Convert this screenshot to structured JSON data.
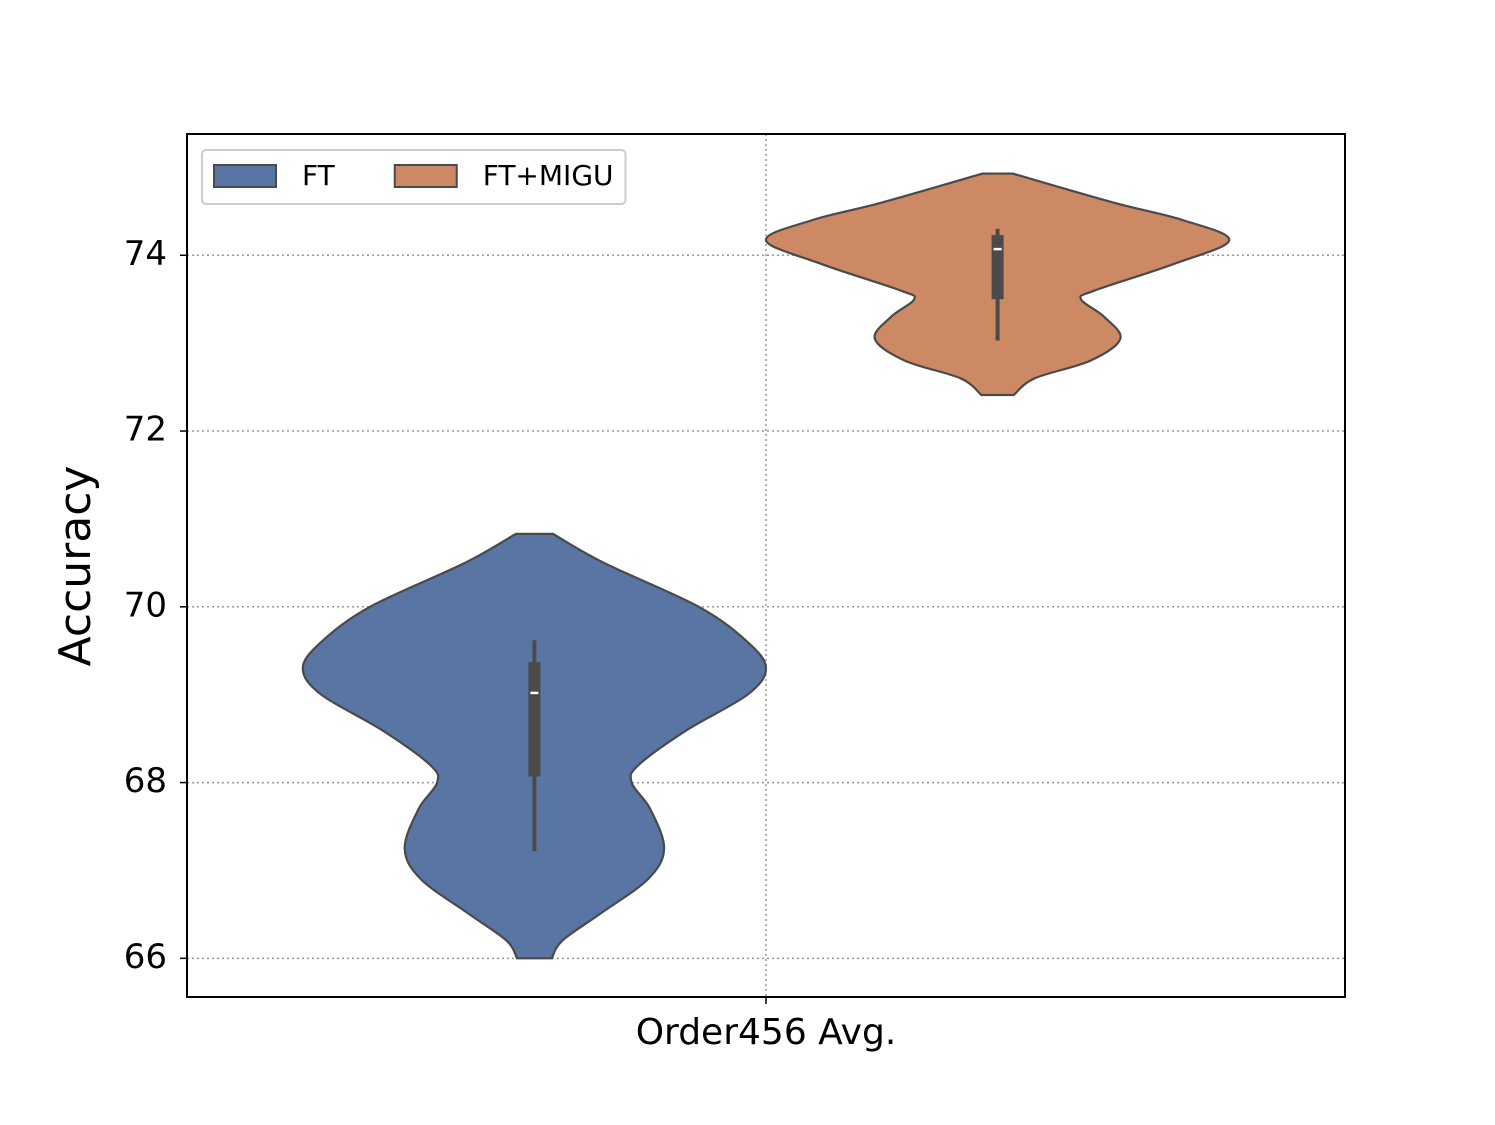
{
  "chart_data": {
    "type": "violin",
    "xlabel": "Order456 Avg.",
    "ylabel": "Accuracy",
    "ylim": [
      65.56,
      75.38
    ],
    "yticks": [
      66,
      68,
      70,
      72,
      74
    ],
    "grid": true,
    "legend": "upper left",
    "series": [
      {
        "name": "FT",
        "color": "#5875a4",
        "min": 66.0,
        "max": 70.83,
        "q1": 68.07,
        "median": 69.02,
        "q3": 69.37,
        "whisker_low": 67.22,
        "whisker_high": 69.62,
        "density": {
          "y": [
            66.0,
            66.2,
            66.5,
            66.9,
            67.25,
            67.7,
            68.0,
            68.2,
            68.6,
            69.0,
            69.3,
            69.6,
            70.0,
            70.5,
            70.83
          ],
          "width": [
            0.075,
            0.12,
            0.28,
            0.49,
            0.56,
            0.5,
            0.42,
            0.45,
            0.66,
            0.92,
            1.0,
            0.92,
            0.71,
            0.3,
            0.08
          ]
        }
      },
      {
        "name": "FT+MIGU",
        "color": "#cc8963",
        "min": 72.41,
        "max": 74.93,
        "q1": 73.5,
        "median": 74.07,
        "q3": 74.23,
        "whisker_low": 73.03,
        "whisker_high": 74.3,
        "density": {
          "y": [
            72.41,
            72.6,
            72.8,
            73.05,
            73.3,
            73.5,
            73.6,
            73.9,
            74.17,
            74.4,
            74.6,
            74.93
          ],
          "width": [
            0.07,
            0.16,
            0.4,
            0.53,
            0.46,
            0.36,
            0.42,
            0.76,
            1.0,
            0.8,
            0.5,
            0.065
          ]
        }
      }
    ]
  }
}
